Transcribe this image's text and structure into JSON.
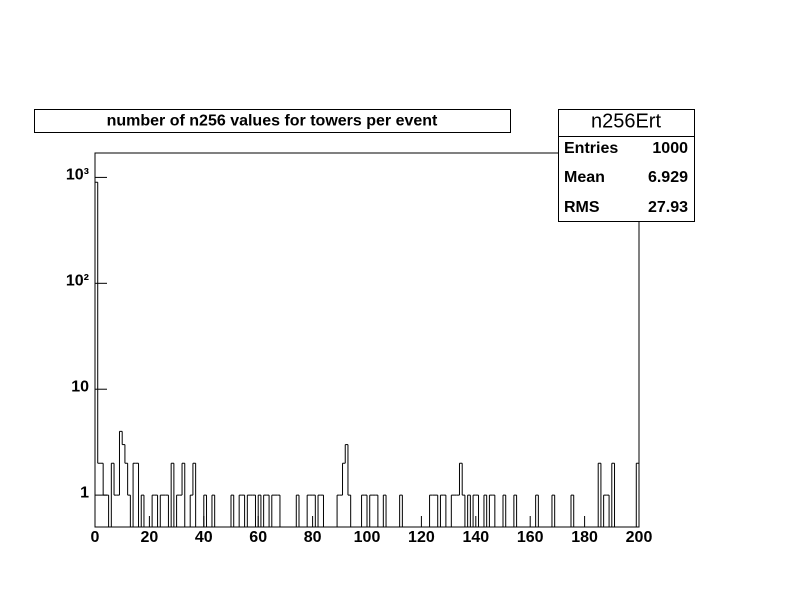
{
  "chart_data": {
    "type": "histogram",
    "title": "number of n256 values for towers per event",
    "stats": {
      "name": "n256Ert",
      "rows": [
        {
          "label": "Entries",
          "value": "1000"
        },
        {
          "label": "Mean",
          "value": "6.929"
        },
        {
          "label": "RMS",
          "value": "27.93"
        }
      ]
    },
    "bins": [
      0,
      1,
      2,
      3,
      4,
      5,
      6,
      7,
      8,
      9,
      10,
      11,
      12,
      13,
      14,
      15,
      16,
      17,
      18,
      19,
      20,
      21,
      22,
      23,
      24,
      25,
      26,
      27,
      28,
      29,
      30,
      31,
      32,
      33,
      34,
      35,
      36,
      37,
      38,
      39,
      40,
      41,
      42,
      43,
      44,
      45,
      46,
      47,
      48,
      49,
      50,
      51,
      52,
      53,
      54,
      55,
      56,
      57,
      58,
      59,
      60,
      61,
      62,
      63,
      64,
      65,
      66,
      67,
      68,
      69,
      70,
      71,
      72,
      73,
      74,
      75,
      76,
      77,
      78,
      79,
      80,
      81,
      82,
      83,
      84,
      85,
      86,
      87,
      88,
      89,
      90,
      91,
      92,
      93,
      94,
      95,
      96,
      97,
      98,
      99,
      100,
      101,
      102,
      103,
      104,
      105,
      106,
      107,
      108,
      109,
      110,
      111,
      112,
      113,
      114,
      115,
      116,
      117,
      118,
      119,
      120,
      121,
      122,
      123,
      124,
      125,
      126,
      127,
      128,
      129,
      130,
      131,
      132,
      133,
      134,
      135,
      136,
      137,
      138,
      139,
      140,
      141,
      142,
      143,
      144,
      145,
      146,
      147,
      148,
      149,
      150,
      151,
      152,
      153,
      154,
      155,
      156,
      157,
      158,
      159,
      160,
      161,
      162,
      163,
      164,
      165,
      166,
      167,
      168,
      169,
      170,
      171,
      172,
      173,
      174,
      175,
      176,
      177,
      178,
      179,
      180,
      181,
      182,
      183,
      184,
      185,
      186,
      187,
      188,
      189,
      190,
      191,
      192,
      193,
      194,
      195,
      196,
      197,
      198,
      199,
      200
    ],
    "values": [
      900,
      2,
      2,
      1,
      1,
      0,
      2,
      1,
      1,
      4,
      3,
      2,
      1,
      0,
      2,
      2,
      0,
      1,
      0,
      0,
      0,
      1,
      1,
      0,
      1,
      1,
      1,
      0,
      2,
      0,
      1,
      1,
      2,
      0,
      0,
      1,
      2,
      0,
      0,
      0,
      1,
      0,
      0,
      1,
      0,
      0,
      0,
      0,
      0,
      0,
      1,
      0,
      0,
      1,
      1,
      0,
      1,
      1,
      1,
      0,
      1,
      0,
      1,
      1,
      0,
      1,
      1,
      1,
      0,
      0,
      0,
      0,
      0,
      0,
      1,
      0,
      0,
      0,
      1,
      1,
      1,
      0,
      1,
      1,
      0,
      0,
      0,
      0,
      0,
      1,
      1,
      2,
      3,
      1,
      0,
      0,
      0,
      0,
      1,
      1,
      0,
      1,
      1,
      1,
      0,
      0,
      1,
      0,
      0,
      0,
      0,
      0,
      1,
      0,
      0,
      0,
      0,
      0,
      0,
      0,
      0,
      0,
      0,
      1,
      1,
      1,
      0,
      1,
      1,
      0,
      0,
      1,
      1,
      1,
      2,
      1,
      0,
      1,
      0,
      1,
      1,
      0,
      0,
      1,
      0,
      1,
      1,
      0,
      0,
      0,
      1,
      0,
      0,
      0,
      1,
      0,
      0,
      0,
      0,
      0,
      0,
      0,
      1,
      0,
      0,
      0,
      0,
      0,
      1,
      0,
      0,
      0,
      0,
      0,
      0,
      1,
      0,
      0,
      0,
      0,
      0,
      0,
      0,
      0,
      0,
      2,
      0,
      1,
      1,
      0,
      2,
      0,
      0,
      0,
      0,
      0,
      0,
      0,
      0,
      2
    ],
    "color": "#000000",
    "xlim": [
      0,
      200
    ],
    "xticks": [
      0,
      20,
      40,
      60,
      80,
      100,
      120,
      140,
      160,
      180,
      200
    ],
    "ylim": [
      0.5,
      1700
    ],
    "ylog": true,
    "yticks": [
      1,
      10,
      {
        "value": 100,
        "label": "10²"
      },
      {
        "value": 1000,
        "label": "10³"
      }
    ]
  }
}
